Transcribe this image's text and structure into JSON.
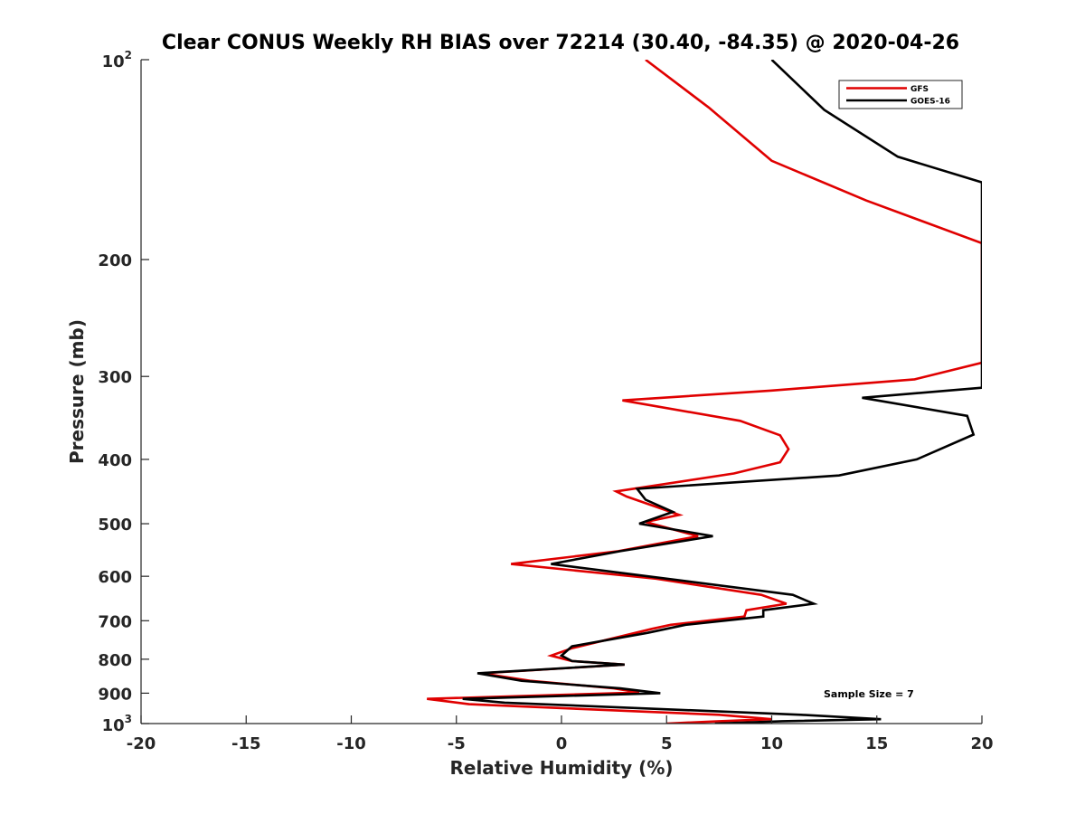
{
  "chart_data": {
    "type": "line",
    "title": "Clear CONUS Weekly RH BIAS over 72214 (30.40, -84.35) @ 2020-04-26",
    "xlabel": "Relative Humidity (%)",
    "ylabel": "Pressure (mb)",
    "xlim": [
      -20,
      20
    ],
    "ylim": [
      100,
      1000
    ],
    "y_scale": "log",
    "y_reversed": true,
    "x_ticks": [
      -20,
      -15,
      -10,
      -5,
      0,
      5,
      10,
      15,
      20
    ],
    "x_tick_labels": [
      "-20",
      "-15",
      "-10",
      "-5",
      "0",
      "5",
      "10",
      "15",
      "20"
    ],
    "y_ticks": [
      200,
      300,
      400,
      500,
      600,
      700,
      800,
      900
    ],
    "y_tick_labels": [
      "200",
      "300",
      "400",
      "500",
      "600",
      "700",
      "800",
      "900"
    ],
    "y_top_label": {
      "base": "10",
      "exp": "2"
    },
    "y_bottom_label": {
      "base": "10",
      "exp": "3"
    },
    "legend_position": "top-right",
    "annotation": "Sample Size = 7",
    "series": [
      {
        "name": "GFS",
        "color": "#e00000",
        "points": [
          [
            4,
            100
          ],
          [
            7,
            118
          ],
          [
            10,
            142
          ],
          [
            14.5,
            163
          ],
          [
            20,
            189
          ],
          [
            20,
            286
          ],
          [
            16.8,
            303
          ],
          [
            10,
            315
          ],
          [
            2.9,
            326
          ],
          [
            8.5,
            350
          ],
          [
            10.4,
            368
          ],
          [
            10.8,
            386
          ],
          [
            10.4,
            404
          ],
          [
            8.2,
            420
          ],
          [
            2.6,
            447
          ],
          [
            3.1,
            455
          ],
          [
            5.6,
            485
          ],
          [
            4,
            497
          ],
          [
            6.5,
            522
          ],
          [
            2.7,
            550
          ],
          [
            -2.4,
            575
          ],
          [
            4.5,
            605
          ],
          [
            9.5,
            640
          ],
          [
            10.7,
            660
          ],
          [
            8.8,
            675
          ],
          [
            8.7,
            690
          ],
          [
            5.2,
            710
          ],
          [
            4.3,
            720
          ],
          [
            0.5,
            770
          ],
          [
            -0.5,
            790
          ],
          [
            0.5,
            805
          ],
          [
            3,
            815
          ],
          [
            -3.8,
            840
          ],
          [
            -1.5,
            862
          ],
          [
            2.5,
            885
          ],
          [
            3.7,
            898
          ],
          [
            -6.4,
            918
          ],
          [
            -4.4,
            935
          ],
          [
            7.5,
            970
          ],
          [
            10,
            985
          ],
          [
            7.5,
            992
          ],
          [
            5,
            1000
          ]
        ]
      },
      {
        "name": "GOES-16",
        "color": "#000000",
        "points": [
          [
            10,
            100
          ],
          [
            12.5,
            119
          ],
          [
            16,
            140
          ],
          [
            20,
            153
          ],
          [
            20,
            312
          ],
          [
            14.3,
            323
          ],
          [
            19.3,
            344
          ],
          [
            19.6,
            367
          ],
          [
            16.9,
            400
          ],
          [
            13.2,
            423
          ],
          [
            3.6,
            443
          ],
          [
            4,
            460
          ],
          [
            5.3,
            480
          ],
          [
            3.7,
            500
          ],
          [
            7.2,
            522
          ],
          [
            2.8,
            550
          ],
          [
            -0.5,
            575
          ],
          [
            5,
            605
          ],
          [
            11,
            640
          ],
          [
            12,
            660
          ],
          [
            9.6,
            675
          ],
          [
            9.6,
            690
          ],
          [
            5.9,
            710
          ],
          [
            4.1,
            730
          ],
          [
            0.5,
            765
          ],
          [
            0,
            790
          ],
          [
            0.5,
            805
          ],
          [
            3,
            815
          ],
          [
            -4,
            840
          ],
          [
            -1.9,
            862
          ],
          [
            2.8,
            885
          ],
          [
            4.7,
            900
          ],
          [
            -4.7,
            918
          ],
          [
            -2.7,
            930
          ],
          [
            11.4,
            970
          ],
          [
            15.2,
            985
          ],
          [
            10.5,
            992
          ],
          [
            7.3,
            1000
          ]
        ]
      }
    ]
  }
}
